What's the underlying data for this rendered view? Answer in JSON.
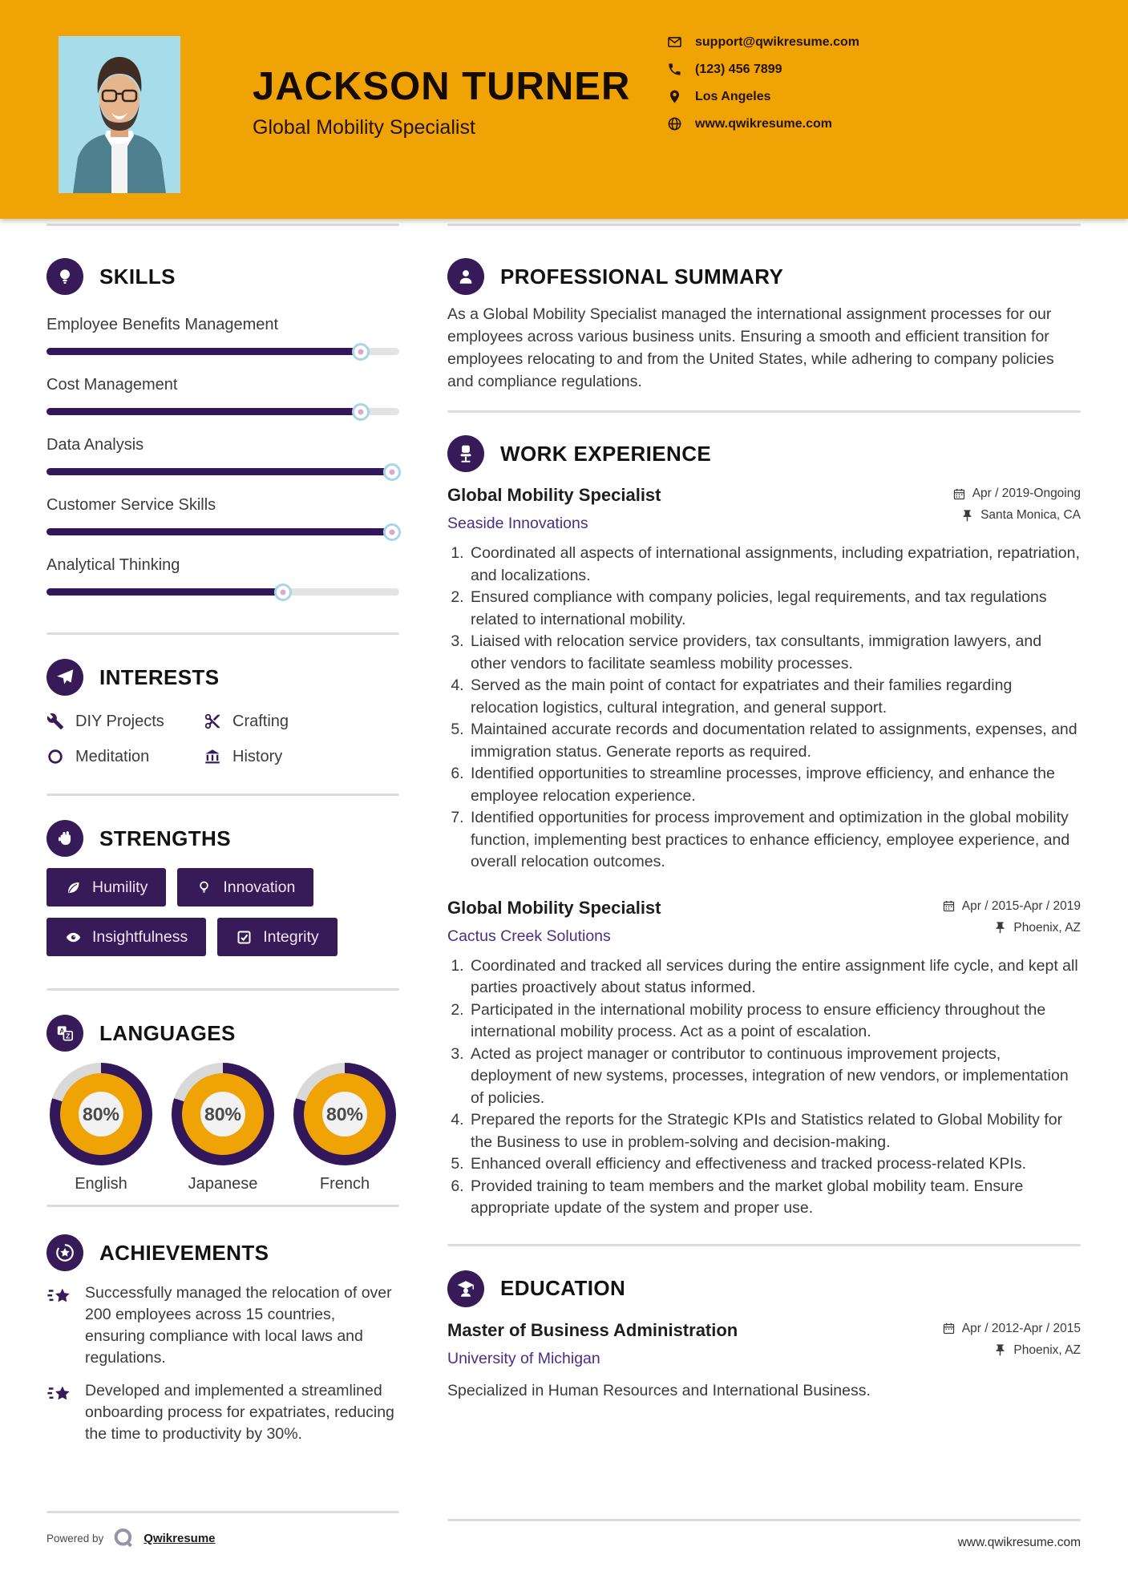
{
  "header": {
    "name": "JACKSON TURNER",
    "title": "Global Mobility Specialist",
    "contacts": [
      {
        "icon": "email-icon",
        "text": "support@qwikresume.com"
      },
      {
        "icon": "phone-icon",
        "text": "(123) 456 7899"
      },
      {
        "icon": "location-icon",
        "text": "Los Angeles"
      },
      {
        "icon": "globe-icon",
        "text": "www.qwikresume.com"
      }
    ]
  },
  "skills": {
    "heading": "SKILLS",
    "items": [
      {
        "label": "Employee Benefits Management",
        "percent": 89
      },
      {
        "label": "Cost Management",
        "percent": 89
      },
      {
        "label": "Data Analysis",
        "percent": 98
      },
      {
        "label": "Customer Service Skills",
        "percent": 98
      },
      {
        "label": "Analytical Thinking",
        "percent": 67
      }
    ]
  },
  "interests": {
    "heading": "INTERESTS",
    "items": [
      {
        "icon": "wrench-icon",
        "label": "DIY Projects"
      },
      {
        "icon": "scissors-icon",
        "label": "Crafting"
      },
      {
        "icon": "circle-icon",
        "label": "Meditation"
      },
      {
        "icon": "museum-icon",
        "label": "History"
      }
    ]
  },
  "strengths": {
    "heading": "STRENGTHS",
    "items": [
      {
        "icon": "leaf-icon",
        "label": "Humility"
      },
      {
        "icon": "bulb-icon",
        "label": "Innovation"
      },
      {
        "icon": "eye-icon",
        "label": "Insightfulness"
      },
      {
        "icon": "check-square-icon",
        "label": "Integrity"
      }
    ]
  },
  "languages": {
    "heading": "LANGUAGES",
    "items": [
      {
        "label": "English",
        "percent": 80,
        "percent_label": "80%"
      },
      {
        "label": "Japanese",
        "percent": 80,
        "percent_label": "80%"
      },
      {
        "label": "French",
        "percent": 80,
        "percent_label": "80%"
      }
    ]
  },
  "achievements": {
    "heading": "ACHIEVEMENTS",
    "items": [
      {
        "text": "Successfully managed the relocation of over 200 employees across 15 countries, ensuring compliance with local laws and regulations."
      },
      {
        "text": "Developed and implemented a streamlined onboarding process for expatriates, reducing the time to productivity by 30%."
      }
    ]
  },
  "summary": {
    "heading": "PROFESSIONAL SUMMARY",
    "text": "As a Global Mobility Specialist managed the international assignment processes for our employees across various business units. Ensuring a smooth and efficient transition for employees relocating to and from the United States, while adhering to company policies and compliance regulations."
  },
  "experience": {
    "heading": "WORK EXPERIENCE",
    "jobs": [
      {
        "title": "Global Mobility Specialist",
        "company": "Seaside Innovations",
        "dates": "Apr / 2019-Ongoing",
        "location": "Santa Monica, CA",
        "bullets": [
          "Coordinated all aspects of international assignments, including expatriation, repatriation, and localizations.",
          "Ensured compliance with company policies, legal requirements, and tax regulations related to international mobility.",
          "Liaised with relocation service providers, tax consultants, immigration lawyers, and other vendors to facilitate seamless mobility processes.",
          "Served as the main point of contact for expatriates and their families regarding relocation logistics, cultural integration, and general support.",
          "Maintained accurate records and documentation related to assignments, expenses, and immigration status. Generate reports as required.",
          "Identified opportunities to streamline processes, improve efficiency, and enhance the employee relocation experience.",
          "Identified opportunities for process improvement and optimization in the global mobility function, implementing best practices to enhance efficiency, employee experience, and overall relocation outcomes."
        ]
      },
      {
        "title": "Global Mobility Specialist",
        "company": "Cactus Creek Solutions",
        "dates": "Apr / 2015-Apr / 2019",
        "location": "Phoenix, AZ",
        "bullets": [
          "Coordinated and tracked all services during the entire assignment life cycle, and kept all parties proactively about status informed.",
          "Participated in the international mobility process to ensure efficiency throughout the international mobility process. Act as a point of escalation.",
          "Acted as project manager or contributor to continuous improvement projects, deployment of new systems, processes, integration of new vendors, or implementation of policies.",
          "Prepared the reports for the Strategic KPIs and Statistics related to Global Mobility for the Business to use in problem-solving and decision-making.",
          "Enhanced overall efficiency and effectiveness and tracked process-related KPIs.",
          "Provided training to team members and the market global mobility team. Ensure appropriate update of the system and proper use."
        ]
      }
    ]
  },
  "education": {
    "heading": "EDUCATION",
    "degree": "Master of Business Administration",
    "school": "University of Michigan",
    "dates": "Apr / 2012-Apr / 2015",
    "location": "Phoenix, AZ",
    "note": "Specialized in Human Resources and International Business."
  },
  "footer": {
    "powered_by": "Powered by",
    "brand": "Qwikresume",
    "website": "www.qwikresume.com"
  },
  "colors": {
    "accent_orange": "#F0A305",
    "accent_purple": "#371B58",
    "link_purple": "#4B2D83",
    "track_gray": "#E3E3E3"
  }
}
